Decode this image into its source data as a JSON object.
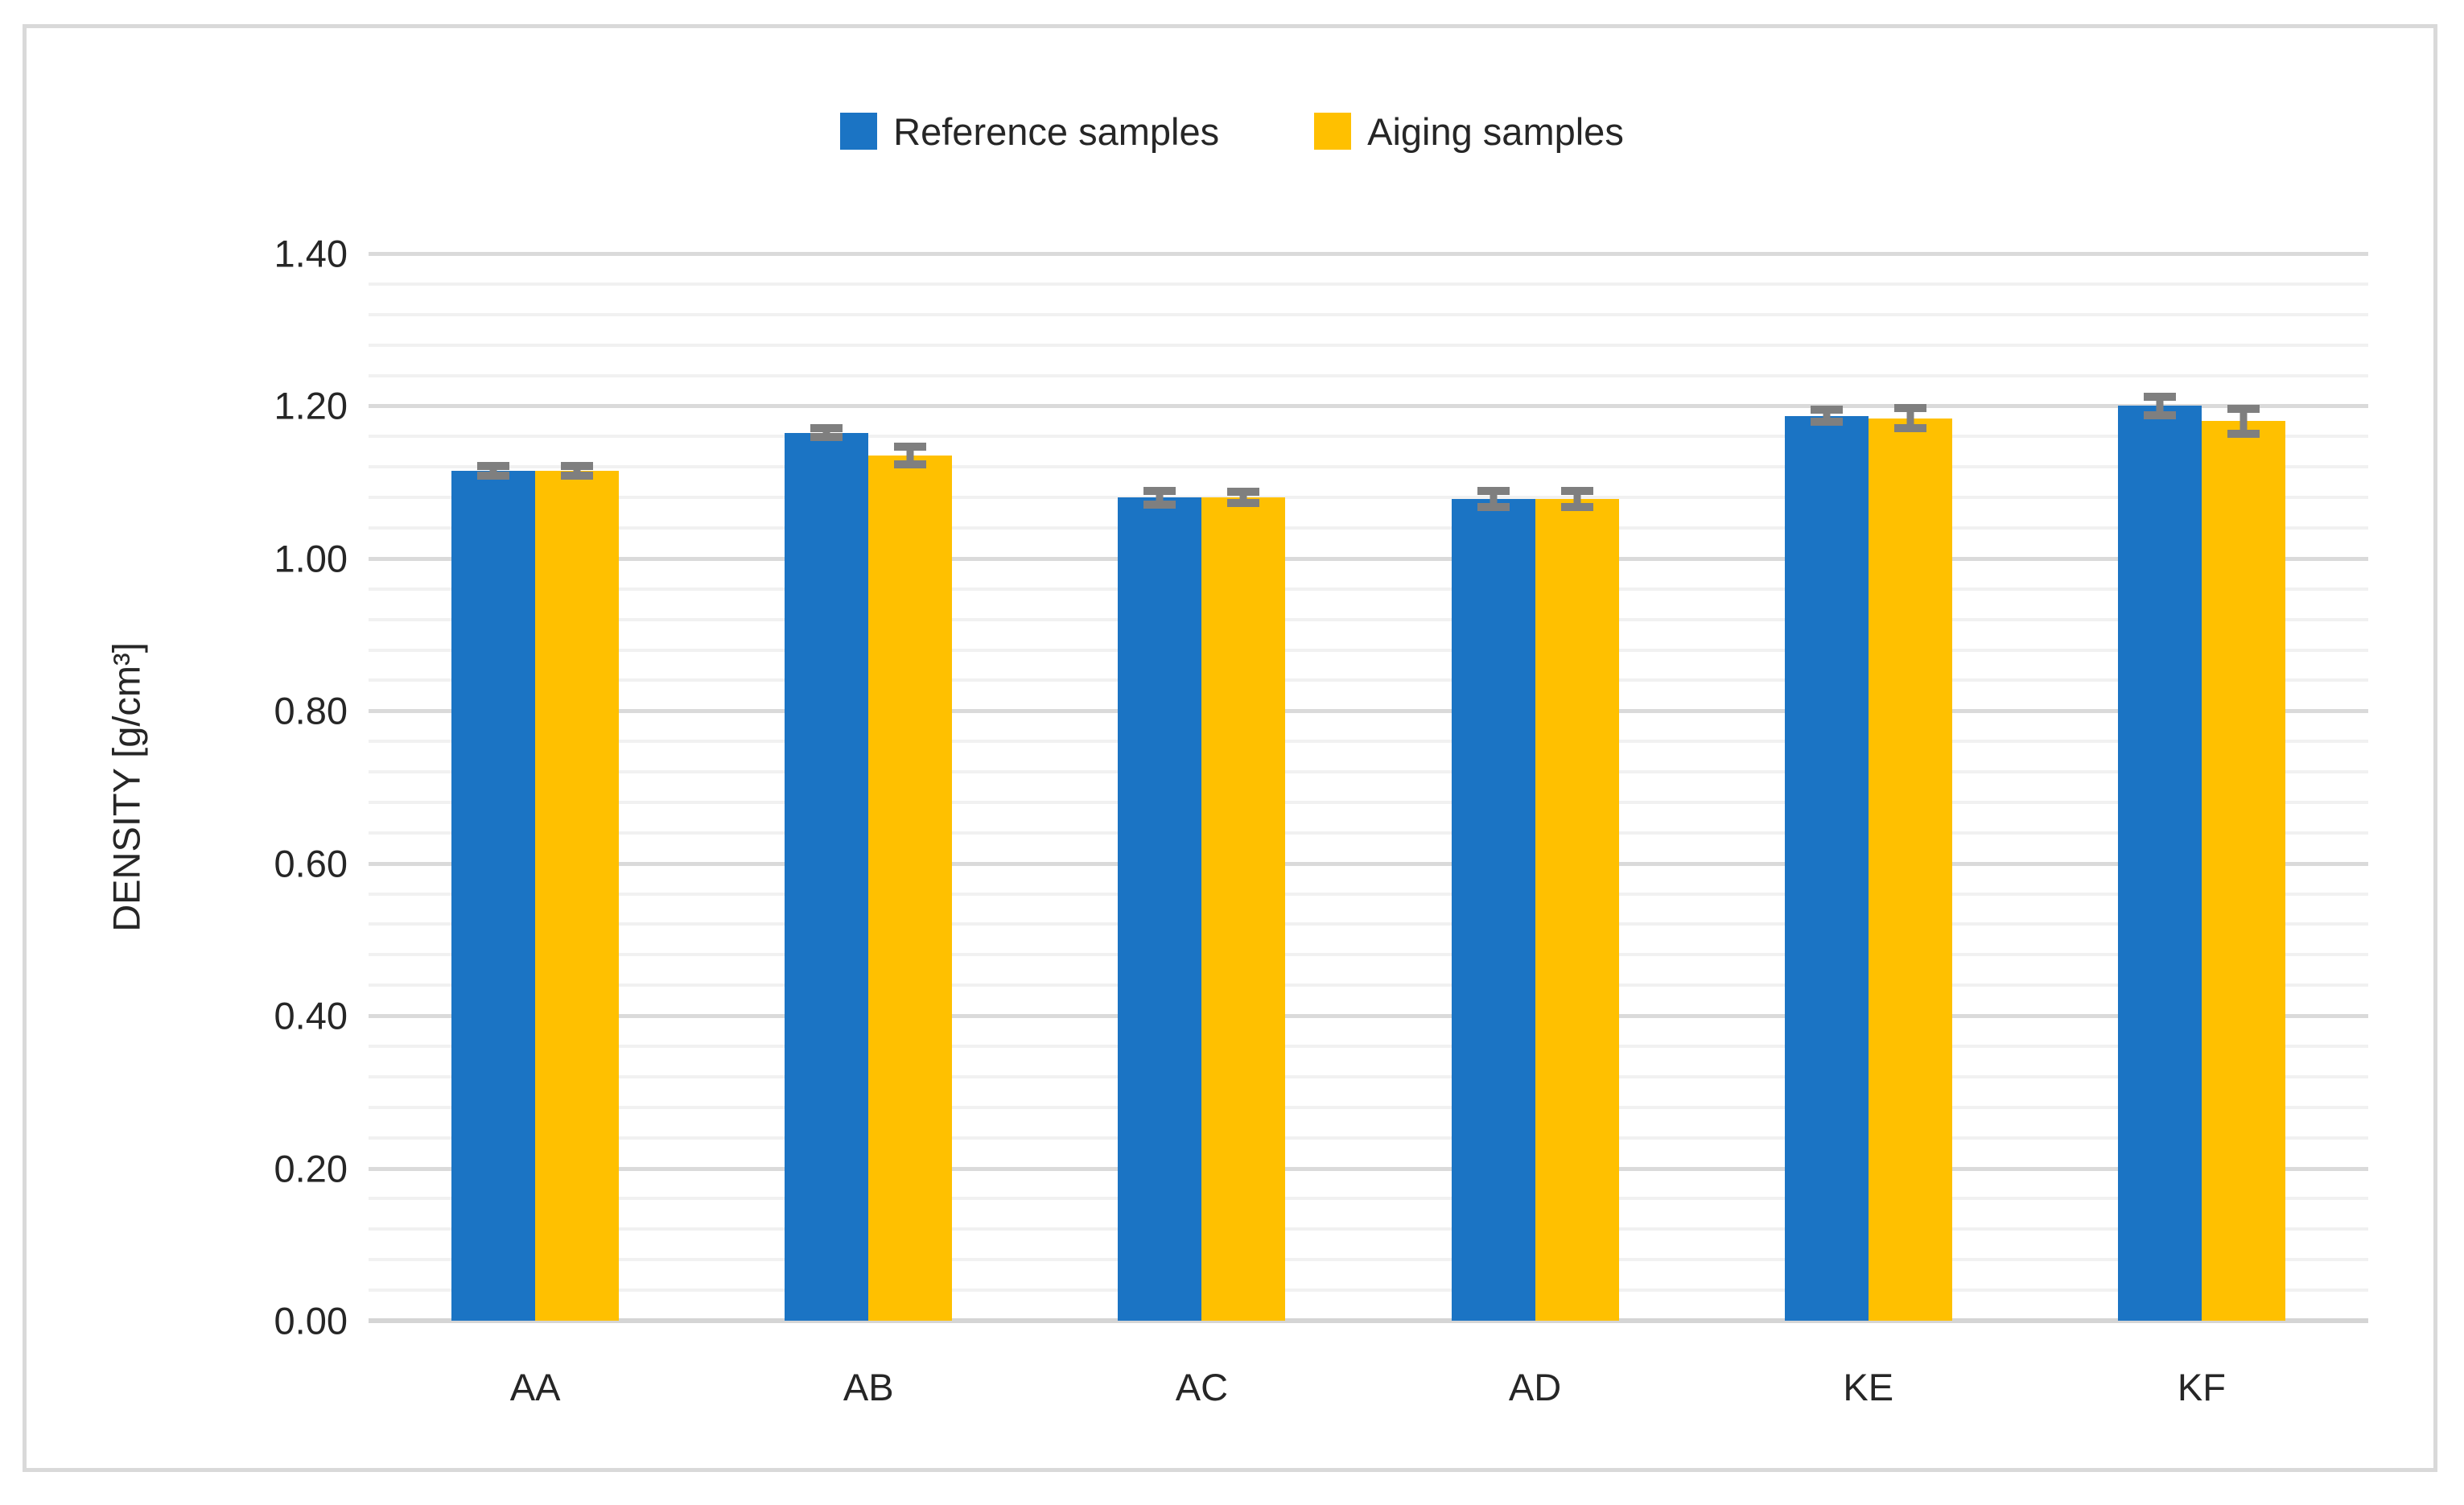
{
  "chart_data": {
    "type": "bar",
    "title": "",
    "categories": [
      "AA",
      "AB",
      "AC",
      "AD",
      "KE",
      "KF"
    ],
    "series": [
      {
        "name": "Reference samples",
        "color": "#1B74C4",
        "values": [
          1.115,
          1.165,
          1.08,
          1.078,
          1.187,
          1.2
        ],
        "errors": [
          0.006,
          0.006,
          0.009,
          0.011,
          0.008,
          0.012
        ]
      },
      {
        "name": "Aiging samples",
        "color": "#FFC000",
        "values": [
          1.115,
          1.135,
          1.08,
          1.078,
          1.184,
          1.18
        ],
        "errors": [
          0.006,
          0.012,
          0.007,
          0.011,
          0.013,
          0.016
        ]
      }
    ],
    "xlabel": "",
    "ylabel": "DENSITY [g/cm³]",
    "ylim": [
      0.0,
      1.4
    ],
    "y_major_unit": 0.2,
    "y_minor_unit": 0.04,
    "y_ticks": [
      "0.00",
      "0.20",
      "0.40",
      "0.60",
      "0.80",
      "1.00",
      "1.20",
      "1.40"
    ],
    "grid": "major-and-minor-horizontal",
    "legend_position": "top-center",
    "error_bar_color": "#7F7F7F",
    "colors": {
      "major_gridline": "#DADADA",
      "minor_gridline": "#F1F1F1",
      "axis_line": "#D5D5D5",
      "frame_border": "#D9D9D9",
      "text": "#262626"
    }
  }
}
